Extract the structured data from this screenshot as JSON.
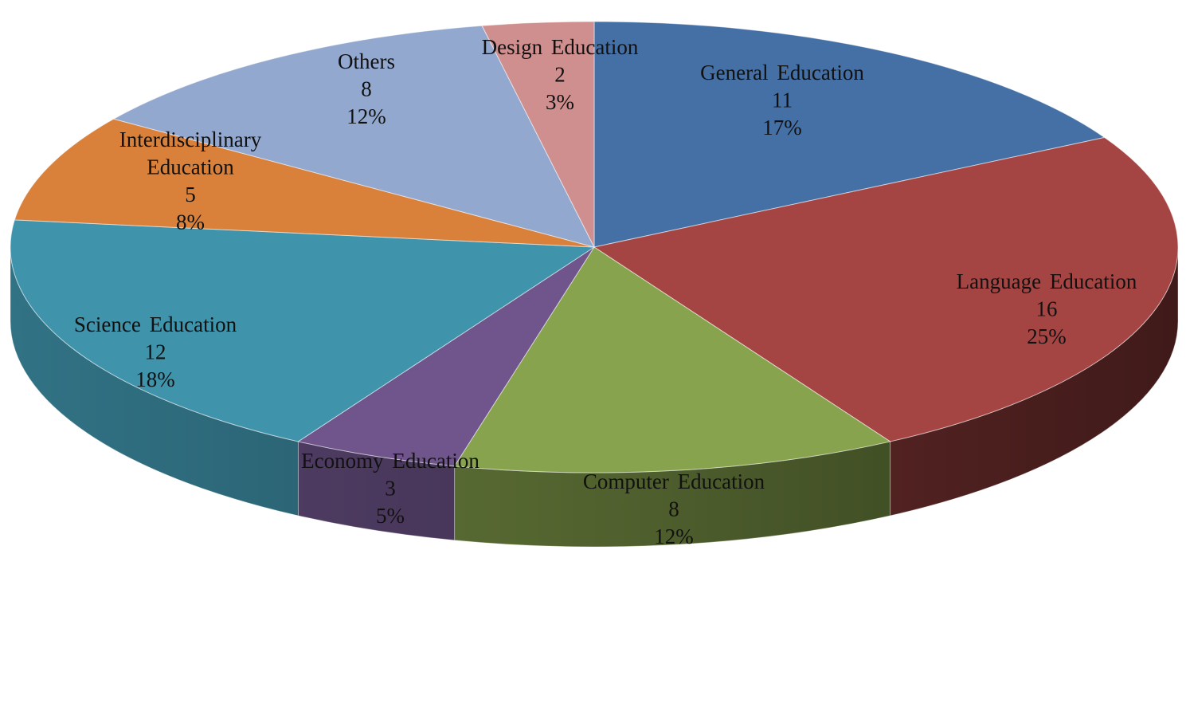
{
  "chart_data": {
    "type": "pie",
    "style": "3d",
    "title": "",
    "start_angle_deg": -90,
    "direction": "clockwise",
    "slices": [
      {
        "label": "General Education",
        "value": 11,
        "percent": "17%",
        "color": "#4570a6"
      },
      {
        "label": "Language Education",
        "value": 16,
        "percent": "25%",
        "color": "#a54543"
      },
      {
        "label": "Computer Education",
        "value": 8,
        "percent": "12%",
        "color": "#87a34d"
      },
      {
        "label": "Economy Education",
        "value": 3,
        "percent": "5%",
        "color": "#6f558c"
      },
      {
        "label": "Science Education",
        "value": 12,
        "percent": "18%",
        "color": "#3f93ab"
      },
      {
        "label": "Interdisciplinary Education",
        "label_lines": [
          "Interdisciplinary",
          "Education"
        ],
        "value": 5,
        "percent": "8%",
        "color": "#d9813b"
      },
      {
        "label": "Others",
        "value": 8,
        "percent": "12%",
        "color": "#93a8cf"
      },
      {
        "label": "Design Education",
        "value": 2,
        "percent": "3%",
        "color": "#d08f8f"
      }
    ]
  }
}
